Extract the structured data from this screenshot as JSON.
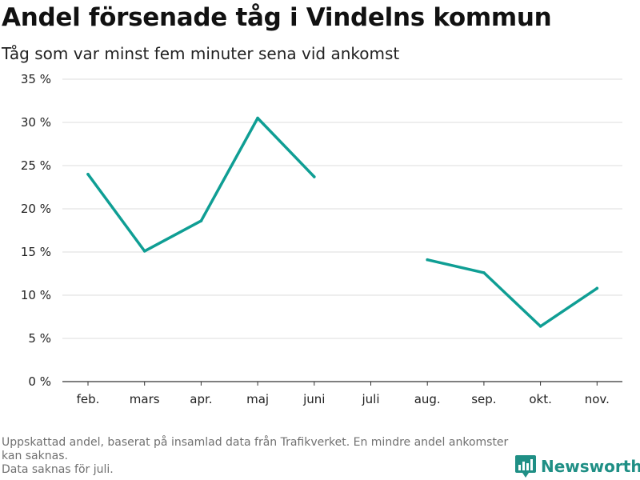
{
  "title": "Andel försenade tåg i Vindelns kommun",
  "subtitle": "Tåg som var minst fem minuter sena vid ankomst",
  "footnote": {
    "line1": "Uppskattad andel, baserat på insamlad data från Trafikverket. En mindre andel ankomster kan saknas.",
    "line2": "Data saknas för juli."
  },
  "brand": {
    "name": "Newsworthy",
    "icon": "newsworthy-logo-icon",
    "color": "#1f8f85"
  },
  "chart_data": {
    "type": "line",
    "categories": [
      "feb.",
      "mars",
      "apr.",
      "maj",
      "juni",
      "juli",
      "aug.",
      "sep.",
      "okt.",
      "nov."
    ],
    "series": [
      {
        "values": [
          24.0,
          15.1,
          18.6,
          30.5,
          23.7,
          null,
          14.1,
          12.6,
          6.4,
          10.8
        ],
        "color": "#0f9e94"
      }
    ],
    "yticks": [
      "0 %",
      "5 %",
      "10 %",
      "15 %",
      "20 %",
      "25 %",
      "30 %",
      "35 %"
    ],
    "ylim": [
      0,
      35
    ],
    "grid": true,
    "legend": "none"
  }
}
